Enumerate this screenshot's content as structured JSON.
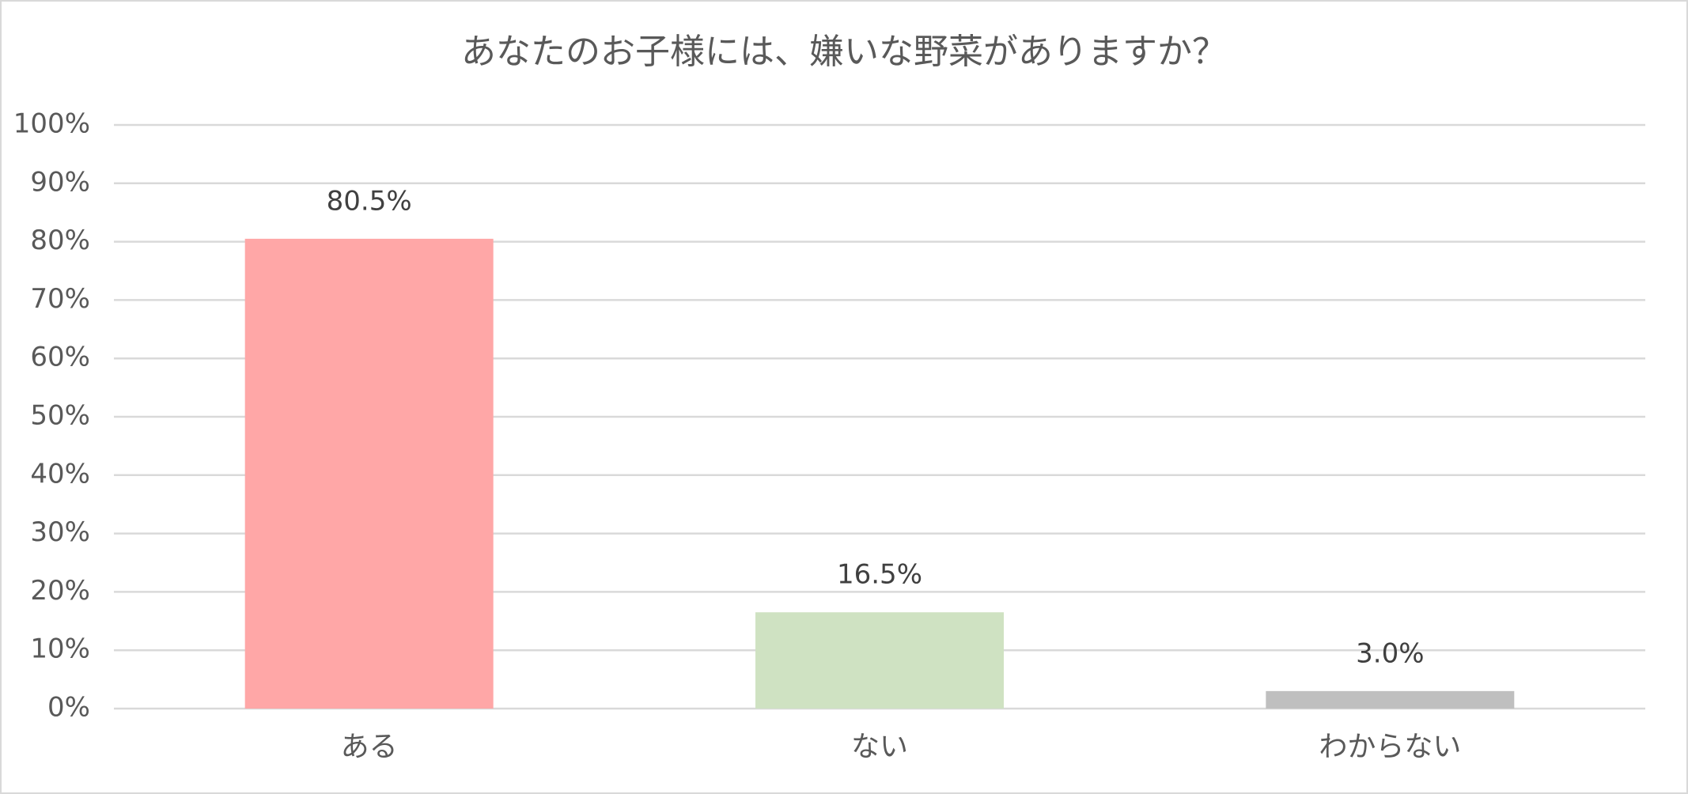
{
  "chart_data": {
    "type": "bar",
    "title": "あなたのお子様には、嫌いな野菜がありますか？",
    "categories": [
      "ある",
      "ない",
      "わからない"
    ],
    "values": [
      80.5,
      16.5,
      3.0
    ],
    "value_labels": [
      "80.5%",
      "16.5%",
      "3.0%"
    ],
    "colors": [
      "#ffa7a7",
      "#cfe2c2",
      "#bfbfbf"
    ],
    "ylim": [
      0,
      100
    ],
    "yticks": [
      {
        "value": 0,
        "label": "0%"
      },
      {
        "value": 10,
        "label": "10%"
      },
      {
        "value": 20,
        "label": "20%"
      },
      {
        "value": 30,
        "label": "30%"
      },
      {
        "value": 40,
        "label": "40%"
      },
      {
        "value": 50,
        "label": "50%"
      },
      {
        "value": 60,
        "label": "60%"
      },
      {
        "value": 70,
        "label": "70%"
      },
      {
        "value": 80,
        "label": "80%"
      },
      {
        "value": 90,
        "label": "90%"
      },
      {
        "value": 100,
        "label": "100%"
      }
    ],
    "grid": true
  }
}
